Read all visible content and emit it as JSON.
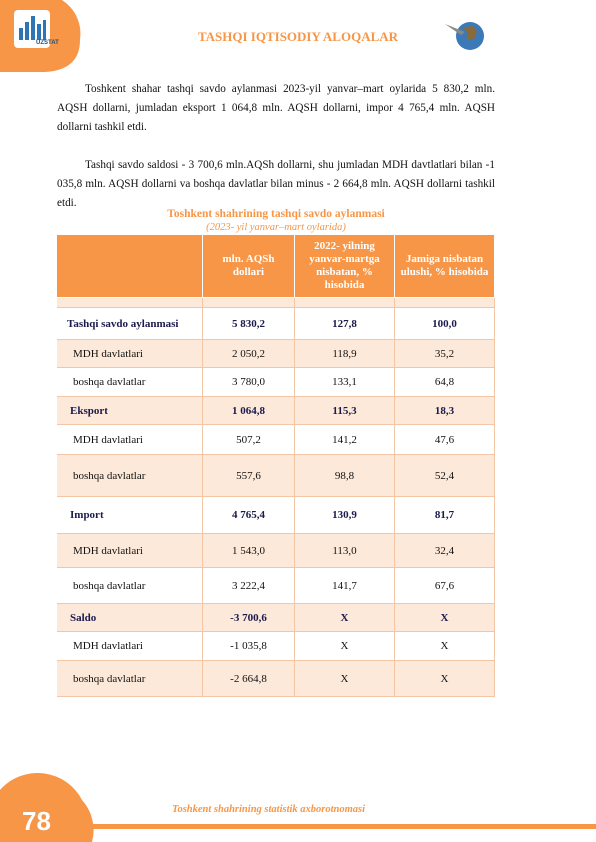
{
  "header": {
    "logo": "UZSTAT",
    "title": "TASHQI IQTISODIY ALOQALAR"
  },
  "paragraphs": [
    "Toshkent shahar tashqi savdo aylanmasi 2023-yil yanvar–mart oylarida 5 830,2 mln. AQSH dollarni, jumladan eksport  1 064,8 mln. AQSH dollarni, impor  4 765,4  mln. AQSH dollarni tashkil etdi.",
    "Tashqi savdo saldosi - 3 700,6 mln.AQSh dollarni, shu jumladan MDH  davtlatlari bilan -1 035,8 mln. AQSH dollarni va boshqa davlatlar bilan minus - 2 664,8 mln. AQSH dollarni tashkil etdi."
  ],
  "table": {
    "title": "Toshkent shahrining tashqi savdo aylanmasi",
    "subtitle": "(2023- yil yanvar–mart oylarida)",
    "columns": [
      "",
      "mln. AQSh dollari",
      "2022- yilning yanvar-martga nisbatan, % hisobida",
      "Jamiga nisbatan ulushi, % hisobida"
    ],
    "rows": [
      [
        "Tashqi savdo aylanmasi",
        "5 830,2",
        "127,8",
        "100,0"
      ],
      [
        "MDH davlatlari",
        "2 050,2",
        "118,9",
        "35,2"
      ],
      [
        "boshqa davlatlar",
        "3 780,0",
        "133,1",
        "64,8"
      ],
      [
        "Eksport",
        "1 064,8",
        "115,3",
        "18,3"
      ],
      [
        "MDH davlatlari",
        "507,2",
        "141,2",
        "47,6"
      ],
      [
        "boshqa davlatlar",
        "557,6",
        "98,8",
        "52,4"
      ],
      [
        "Import",
        "4 765,4",
        "130,9",
        "81,7"
      ],
      [
        "MDH davlatlari",
        "1 543,0",
        "113,0",
        "32,4"
      ],
      [
        "boshqa davlatlar",
        "3 222,4",
        "141,7",
        "67,6"
      ],
      [
        "Saldo",
        "-3 700,6",
        "X",
        "X"
      ],
      [
        "MDH davlatlari",
        "-1 035,8",
        "X",
        "X"
      ],
      [
        "boshqa davlatlar",
        "-2 664,8",
        "X",
        "X"
      ]
    ]
  },
  "footer": {
    "page": "78",
    "text": "Toshkent shahrining statistik axborotnomasi"
  }
}
